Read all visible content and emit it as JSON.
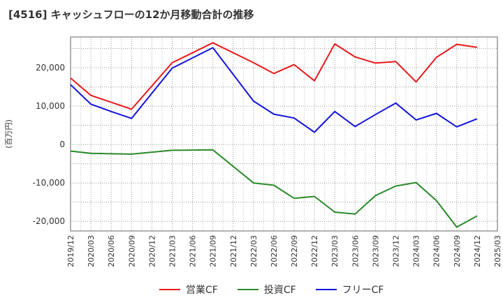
{
  "chart_data": {
    "type": "line",
    "title": "[4516]  キャッシュフローの12か月移動合計の推移",
    "ylabel": "(百万円)",
    "xlabel": "",
    "ylim": [
      -22500,
      28000
    ],
    "yticks": [
      20000,
      10000,
      0,
      -10000,
      -20000
    ],
    "ytick_labels": [
      "20,000",
      "10,000",
      "0",
      "-10,000",
      "-20,000"
    ],
    "categories": [
      "2019/12",
      "2020/03",
      "2020/06",
      "2020/09",
      "2020/12",
      "2021/03",
      "2021/06",
      "2021/09",
      "2021/12",
      "2022/03",
      "2022/06",
      "2022/09",
      "2022/12",
      "2023/03",
      "2023/06",
      "2023/09",
      "2023/12",
      "2024/03",
      "2024/06",
      "2024/09",
      "2024/12",
      "2025/03"
    ],
    "grid": true,
    "legend_position": "bottom",
    "series": [
      {
        "name": "営業CF",
        "color": "#e8191b",
        "values": [
          17300,
          12800,
          11000,
          9200,
          null,
          21300,
          null,
          26500,
          null,
          21300,
          18500,
          20800,
          16600,
          26200,
          22800,
          21200,
          21600,
          16300,
          22700,
          26100,
          25300,
          null
        ]
      },
      {
        "name": "投資CF",
        "color": "#2a8a2a",
        "values": [
          -1700,
          -2300,
          -2400,
          -2500,
          null,
          -1500,
          null,
          -1400,
          null,
          -10000,
          -10600,
          -14000,
          -13500,
          -17600,
          -18100,
          -13300,
          -10800,
          -9900,
          -14600,
          -21500,
          -18600,
          null
        ]
      },
      {
        "name": "フリーCF",
        "color": "#1414dc",
        "values": [
          15600,
          10500,
          8600,
          6800,
          null,
          19900,
          null,
          25200,
          null,
          11300,
          7900,
          6900,
          3200,
          8600,
          4700,
          7800,
          10800,
          6400,
          8100,
          4600,
          6700,
          null
        ]
      }
    ]
  }
}
